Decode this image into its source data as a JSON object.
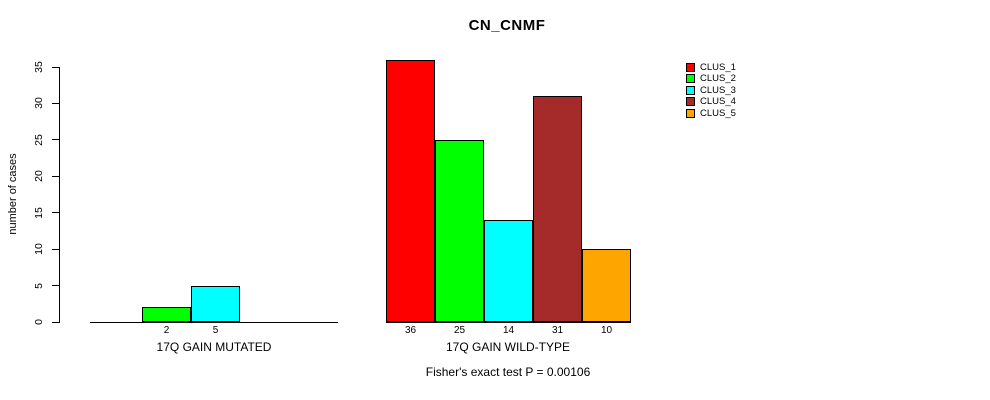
{
  "chart_data": {
    "type": "bar",
    "title": "CN_CNMF",
    "ylabel": "number of cases",
    "xlabel": "",
    "ylim": [
      0,
      35
    ],
    "yticks": [
      0,
      5,
      10,
      15,
      20,
      25,
      30,
      35
    ],
    "grid": false,
    "legend_position": "right",
    "categories": [
      "17Q GAIN MUTATED",
      "17Q GAIN WILD-TYPE"
    ],
    "series": [
      {
        "name": "CLUS_1",
        "color": "#FF0000",
        "values": [
          0,
          36
        ]
      },
      {
        "name": "CLUS_2",
        "color": "#00FF00",
        "values": [
          2,
          25
        ]
      },
      {
        "name": "CLUS_3",
        "color": "#00FFFF",
        "values": [
          5,
          14
        ]
      },
      {
        "name": "CLUS_4",
        "color": "#A52A2A",
        "values": [
          0,
          31
        ]
      },
      {
        "name": "CLUS_5",
        "color": "#FFA500",
        "values": [
          0,
          10
        ]
      }
    ],
    "bar_value_labels": "shown under nonzero bars",
    "footnote": "Fisher's exact test P = 0.00106"
  }
}
